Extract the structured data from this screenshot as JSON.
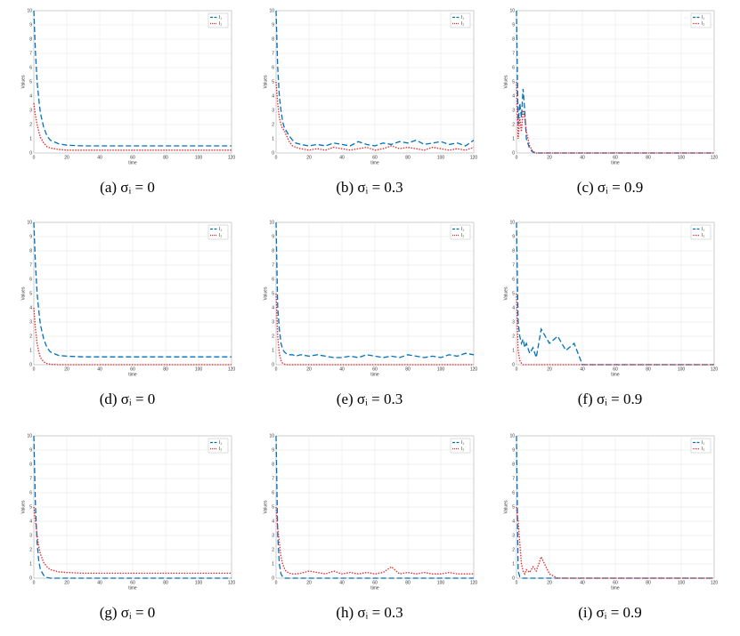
{
  "chart_data": [
    {
      "type": "line",
      "caption": "(a) σᵢ = 0",
      "xlabel": "time",
      "ylabel": "Values",
      "xlim": [
        0,
        120
      ],
      "ylim": [
        0,
        10
      ],
      "xticks": [
        0,
        20,
        40,
        60,
        80,
        100,
        120
      ],
      "yticks": [
        0,
        1,
        2,
        3,
        4,
        5,
        6,
        7,
        8,
        9,
        10
      ],
      "grid": true,
      "legend": "upper right",
      "x": [
        0,
        1,
        2,
        3,
        4,
        6,
        8,
        10,
        15,
        20,
        30,
        40,
        60,
        80,
        100,
        120
      ],
      "series": [
        {
          "name": "I₁",
          "color": "#0072bd",
          "style": "dashed",
          "values": [
            10,
            7,
            5,
            3.8,
            2.8,
            1.8,
            1.2,
            0.9,
            0.65,
            0.55,
            0.5,
            0.5,
            0.5,
            0.5,
            0.5,
            0.5
          ]
        },
        {
          "name": "I₂",
          "color": "#e8242b",
          "style": "dotted",
          "values": [
            3.5,
            2.6,
            2,
            1.5,
            1.1,
            0.7,
            0.45,
            0.35,
            0.25,
            0.2,
            0.2,
            0.2,
            0.2,
            0.2,
            0.2,
            0.2
          ]
        }
      ]
    },
    {
      "type": "line",
      "caption": "(b) σᵢ = 0.3",
      "xlabel": "time",
      "ylabel": "Values",
      "xlim": [
        0,
        120
      ],
      "ylim": [
        0,
        10
      ],
      "xticks": [
        0,
        20,
        40,
        60,
        80,
        100,
        120
      ],
      "yticks": [
        0,
        1,
        2,
        3,
        4,
        5,
        6,
        7,
        8,
        9,
        10
      ],
      "grid": true,
      "legend": "upper right",
      "x": [
        0,
        1,
        2,
        3,
        4,
        5,
        6,
        8,
        10,
        12,
        15,
        20,
        25,
        30,
        35,
        40,
        45,
        50,
        55,
        60,
        65,
        70,
        75,
        80,
        85,
        90,
        95,
        100,
        105,
        110,
        115,
        120
      ],
      "series": [
        {
          "name": "I₁",
          "color": "#0072bd",
          "style": "dashed",
          "values": [
            10,
            6,
            4,
            3,
            2.2,
            1.8,
            1.6,
            1.2,
            0.9,
            0.7,
            0.6,
            0.5,
            0.6,
            0.5,
            0.7,
            0.6,
            0.5,
            0.8,
            0.6,
            0.5,
            0.7,
            0.6,
            0.8,
            0.7,
            0.9,
            0.6,
            0.7,
            0.8,
            0.6,
            0.7,
            0.5,
            0.9
          ]
        },
        {
          "name": "I₂",
          "color": "#e8242b",
          "style": "dotted",
          "values": [
            5,
            3.5,
            2.5,
            2,
            1.7,
            1.6,
            1.3,
            0.8,
            0.5,
            0.4,
            0.3,
            0.2,
            0.3,
            0.2,
            0.4,
            0.3,
            0.2,
            0.3,
            0.4,
            0.2,
            0.3,
            0.5,
            0.3,
            0.4,
            0.3,
            0.2,
            0.4,
            0.3,
            0.2,
            0.3,
            0.2,
            0.4
          ]
        }
      ]
    },
    {
      "type": "line",
      "caption": "(c) σᵢ = 0.9",
      "xlabel": "time",
      "ylabel": "Values",
      "xlim": [
        0,
        120
      ],
      "ylim": [
        0,
        10
      ],
      "xticks": [
        0,
        20,
        40,
        60,
        80,
        100,
        120
      ],
      "yticks": [
        0,
        1,
        2,
        3,
        4,
        5,
        6,
        7,
        8,
        9,
        10
      ],
      "grid": true,
      "legend": "upper right",
      "x": [
        0,
        1,
        2,
        3,
        4,
        5,
        6,
        8,
        10,
        12,
        15,
        20,
        25,
        30,
        35,
        40,
        45,
        50,
        55,
        60,
        65,
        70,
        75,
        80,
        85,
        90,
        95,
        100,
        105,
        110,
        115,
        120
      ],
      "series": [
        {
          "name": "I₁",
          "color": "#0072bd",
          "style": "dashed",
          "values": [
            10,
            2,
            3.5,
            2.5,
            4.5,
            3,
            1,
            0.3,
            0.05,
            0,
            0,
            0,
            0,
            0,
            0,
            0,
            0,
            0,
            0,
            0,
            0,
            0,
            0,
            0,
            0,
            0,
            0,
            0,
            0,
            0,
            0,
            0
          ]
        },
        {
          "name": "I₂",
          "color": "#e8242b",
          "style": "dotted",
          "values": [
            5,
            1,
            2.5,
            1.5,
            3,
            2.5,
            1.5,
            0.5,
            0.1,
            0,
            0,
            0,
            0,
            0,
            0,
            0,
            0,
            0,
            0,
            0,
            0,
            0,
            0,
            0,
            0,
            0,
            0,
            0,
            0,
            0,
            0,
            0
          ]
        }
      ]
    },
    {
      "type": "line",
      "caption": "(d) σᵢ = 0",
      "xlabel": "time",
      "ylabel": "Values",
      "xlim": [
        0,
        120
      ],
      "ylim": [
        0,
        10
      ],
      "xticks": [
        0,
        20,
        40,
        60,
        80,
        100,
        120
      ],
      "yticks": [
        0,
        1,
        2,
        3,
        4,
        5,
        6,
        7,
        8,
        9,
        10
      ],
      "grid": true,
      "legend": "upper right",
      "x": [
        0,
        1,
        2,
        3,
        4,
        6,
        8,
        10,
        15,
        20,
        30,
        40,
        60,
        80,
        100,
        120
      ],
      "series": [
        {
          "name": "I₁",
          "color": "#0072bd",
          "style": "dashed",
          "values": [
            10,
            7,
            5,
            3.8,
            2.8,
            1.8,
            1.2,
            0.9,
            0.65,
            0.6,
            0.55,
            0.55,
            0.55,
            0.55,
            0.55,
            0.55
          ]
        },
        {
          "name": "I₂",
          "color": "#e8242b",
          "style": "dotted",
          "values": [
            4,
            2.5,
            1.5,
            0.9,
            0.5,
            0.2,
            0.08,
            0.03,
            0,
            0,
            0,
            0,
            0,
            0,
            0,
            0
          ]
        }
      ]
    },
    {
      "type": "line",
      "caption": "(e) σᵢ = 0.3",
      "xlabel": "time",
      "ylabel": "Values",
      "xlim": [
        0,
        120
      ],
      "ylim": [
        0,
        10
      ],
      "xticks": [
        0,
        20,
        40,
        60,
        80,
        100,
        120
      ],
      "yticks": [
        0,
        1,
        2,
        3,
        4,
        5,
        6,
        7,
        8,
        9,
        10
      ],
      "grid": true,
      "legend": "upper right",
      "x": [
        0,
        1,
        2,
        3,
        4,
        5,
        6,
        8,
        10,
        12,
        15,
        20,
        25,
        30,
        35,
        40,
        45,
        50,
        55,
        60,
        65,
        70,
        75,
        80,
        85,
        90,
        95,
        100,
        105,
        110,
        115,
        120
      ],
      "series": [
        {
          "name": "I₁",
          "color": "#0072bd",
          "style": "dashed",
          "values": [
            10,
            4,
            2.5,
            1.5,
            1.1,
            0.9,
            0.8,
            0.7,
            0.7,
            0.6,
            0.7,
            0.6,
            0.7,
            0.6,
            0.5,
            0.5,
            0.6,
            0.5,
            0.7,
            0.6,
            0.5,
            0.6,
            0.5,
            0.7,
            0.6,
            0.5,
            0.6,
            0.5,
            0.7,
            0.6,
            0.8,
            0.7
          ]
        },
        {
          "name": "I₂",
          "color": "#e8242b",
          "style": "dotted",
          "values": [
            5,
            2,
            0.8,
            0.3,
            0.1,
            0.05,
            0,
            0,
            0,
            0,
            0,
            0,
            0,
            0,
            0,
            0,
            0,
            0,
            0,
            0,
            0,
            0,
            0,
            0,
            0,
            0,
            0,
            0,
            0,
            0,
            0,
            0
          ]
        }
      ]
    },
    {
      "type": "line",
      "caption": "(f) σᵢ = 0.9",
      "xlabel": "time",
      "ylabel": "Values",
      "xlim": [
        0,
        120
      ],
      "ylim": [
        0,
        10
      ],
      "xticks": [
        0,
        20,
        40,
        60,
        80,
        100,
        120
      ],
      "yticks": [
        0,
        1,
        2,
        3,
        4,
        5,
        6,
        7,
        8,
        9,
        10
      ],
      "grid": true,
      "legend": "upper right",
      "x": [
        0,
        1,
        2,
        3,
        4,
        5,
        6,
        8,
        10,
        12,
        15,
        20,
        25,
        30,
        35,
        40,
        45,
        50,
        55,
        60,
        65,
        70,
        75,
        80,
        85,
        90,
        95,
        100,
        105,
        110,
        115,
        120
      ],
      "series": [
        {
          "name": "I₁",
          "color": "#0072bd",
          "style": "dashed",
          "values": [
            10,
            3,
            2,
            1.5,
            1.8,
            1.2,
            1.5,
            0.8,
            1.2,
            0.5,
            2.5,
            1.5,
            2,
            1,
            1.5,
            0,
            0,
            0,
            0,
            0,
            0,
            0,
            0,
            0,
            0,
            0,
            0,
            0,
            0,
            0,
            0,
            0
          ]
        },
        {
          "name": "I₂",
          "color": "#e8242b",
          "style": "dotted",
          "values": [
            5,
            1,
            0.3,
            0.1,
            0,
            0,
            0,
            0,
            0,
            0,
            0,
            0,
            0,
            0,
            0,
            0,
            0,
            0,
            0,
            0,
            0,
            0,
            0,
            0,
            0,
            0,
            0,
            0,
            0,
            0,
            0,
            0
          ]
        }
      ]
    },
    {
      "type": "line",
      "caption": "(g) σᵢ = 0",
      "xlabel": "time",
      "ylabel": "Values",
      "xlim": [
        0,
        120
      ],
      "ylim": [
        0,
        10
      ],
      "xticks": [
        0,
        20,
        40,
        60,
        80,
        100,
        120
      ],
      "yticks": [
        0,
        1,
        2,
        3,
        4,
        5,
        6,
        7,
        8,
        9,
        10
      ],
      "grid": true,
      "legend": "upper right",
      "x": [
        0,
        1,
        2,
        3,
        4,
        6,
        8,
        10,
        15,
        20,
        30,
        40,
        60,
        80,
        100,
        120
      ],
      "series": [
        {
          "name": "I₁",
          "color": "#0072bd",
          "style": "dashed",
          "values": [
            10,
            5,
            2.5,
            1.2,
            0.6,
            0.2,
            0.05,
            0,
            0,
            0,
            0,
            0,
            0,
            0,
            0,
            0
          ]
        },
        {
          "name": "I₂",
          "color": "#e8242b",
          "style": "dotted",
          "values": [
            5,
            4,
            3,
            2.2,
            1.7,
            1.1,
            0.8,
            0.6,
            0.45,
            0.4,
            0.35,
            0.35,
            0.35,
            0.35,
            0.35,
            0.35
          ]
        }
      ]
    },
    {
      "type": "line",
      "caption": "(h) σᵢ = 0.3",
      "xlabel": "time",
      "ylabel": "Values",
      "xlim": [
        0,
        120
      ],
      "ylim": [
        0,
        10
      ],
      "xticks": [
        0,
        20,
        40,
        60,
        80,
        100,
        120
      ],
      "yticks": [
        0,
        1,
        2,
        3,
        4,
        5,
        6,
        7,
        8,
        9,
        10
      ],
      "grid": true,
      "legend": "upper right",
      "x": [
        0,
        1,
        2,
        3,
        4,
        5,
        6,
        8,
        10,
        12,
        15,
        20,
        25,
        30,
        35,
        40,
        45,
        50,
        55,
        60,
        65,
        70,
        75,
        80,
        85,
        90,
        95,
        100,
        105,
        110,
        115,
        120
      ],
      "series": [
        {
          "name": "I₁",
          "color": "#0072bd",
          "style": "dashed",
          "values": [
            10,
            3,
            1,
            0.3,
            0.1,
            0,
            0,
            0,
            0,
            0,
            0,
            0,
            0,
            0,
            0,
            0,
            0,
            0,
            0,
            0,
            0,
            0,
            0,
            0,
            0,
            0,
            0,
            0,
            0,
            0,
            0,
            0
          ]
        },
        {
          "name": "I₂",
          "color": "#e8242b",
          "style": "dotted",
          "values": [
            5,
            3.5,
            2.5,
            1.5,
            1,
            0.7,
            0.5,
            0.35,
            0.3,
            0.3,
            0.35,
            0.5,
            0.4,
            0.3,
            0.5,
            0.3,
            0.4,
            0.3,
            0.4,
            0.3,
            0.4,
            0.8,
            0.3,
            0.4,
            0.3,
            0.4,
            0.3,
            0.3,
            0.4,
            0.3,
            0.3,
            0.3
          ]
        }
      ]
    },
    {
      "type": "line",
      "caption": "(i) σᵢ = 0.9",
      "xlabel": "time",
      "ylabel": "Values",
      "xlim": [
        0,
        120
      ],
      "ylim": [
        0,
        10
      ],
      "xticks": [
        0,
        20,
        40,
        60,
        80,
        100,
        120
      ],
      "yticks": [
        0,
        1,
        2,
        3,
        4,
        5,
        6,
        7,
        8,
        9,
        10
      ],
      "grid": true,
      "legend": "upper right",
      "x": [
        0,
        1,
        2,
        3,
        4,
        5,
        6,
        8,
        10,
        12,
        15,
        20,
        25,
        30,
        35,
        40,
        45,
        50,
        55,
        60,
        65,
        70,
        75,
        80,
        85,
        90,
        95,
        100,
        105,
        110,
        115,
        120
      ],
      "series": [
        {
          "name": "I₁",
          "color": "#0072bd",
          "style": "dashed",
          "values": [
            10,
            0.5,
            0.1,
            0,
            0,
            0,
            0,
            0,
            0,
            0,
            0,
            0,
            0,
            0,
            0,
            0,
            0,
            0,
            0,
            0,
            0,
            0,
            0,
            0,
            0,
            0,
            0,
            0,
            0,
            0,
            0,
            0
          ]
        },
        {
          "name": "I₂",
          "color": "#e8242b",
          "style": "dotted",
          "values": [
            5,
            4,
            2.5,
            1,
            0.5,
            0.3,
            0.6,
            0.4,
            0.8,
            0.5,
            1.5,
            0.3,
            0,
            0,
            0,
            0,
            0,
            0,
            0,
            0,
            0,
            0,
            0,
            0,
            0,
            0,
            0,
            0,
            0,
            0,
            0,
            0
          ]
        }
      ]
    }
  ]
}
